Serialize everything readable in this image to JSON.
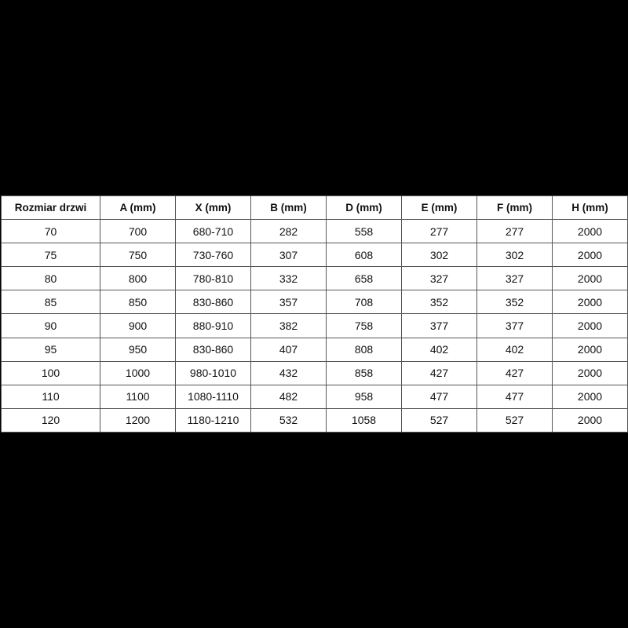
{
  "table": {
    "headers": [
      "Rozmiar drzwi",
      "A (mm)",
      "X (mm)",
      "B (mm)",
      "D (mm)",
      "E (mm)",
      "F (mm)",
      "H (mm)"
    ],
    "rows": [
      [
        "70",
        "700",
        "680-710",
        "282",
        "558",
        "277",
        "277",
        "2000"
      ],
      [
        "75",
        "750",
        "730-760",
        "307",
        "608",
        "302",
        "302",
        "2000"
      ],
      [
        "80",
        "800",
        "780-810",
        "332",
        "658",
        "327",
        "327",
        "2000"
      ],
      [
        "85",
        "850",
        "830-860",
        "357",
        "708",
        "352",
        "352",
        "2000"
      ],
      [
        "90",
        "900",
        "880-910",
        "382",
        "758",
        "377",
        "377",
        "2000"
      ],
      [
        "95",
        "950",
        "830-860",
        "407",
        "808",
        "402",
        "402",
        "2000"
      ],
      [
        "100",
        "1000",
        "980-1010",
        "432",
        "858",
        "427",
        "427",
        "2000"
      ],
      [
        "110",
        "1100",
        "1080-1110",
        "482",
        "958",
        "477",
        "477",
        "2000"
      ],
      [
        "120",
        "1200",
        "1180-1210",
        "532",
        "1058",
        "527",
        "527",
        "2000"
      ]
    ]
  }
}
